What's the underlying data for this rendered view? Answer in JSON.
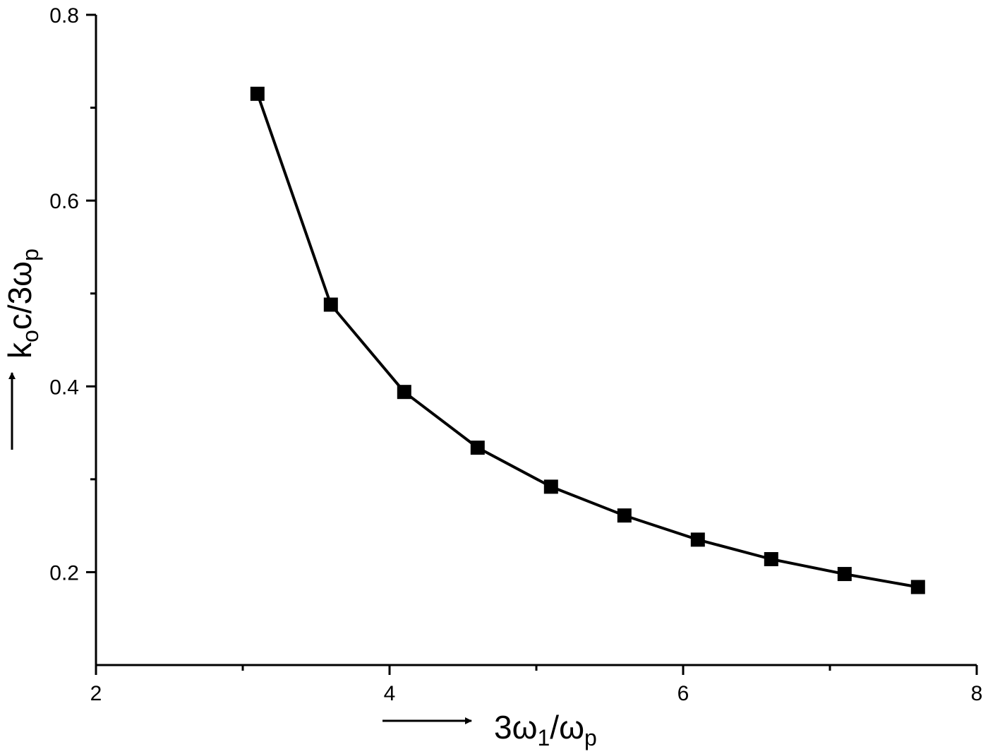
{
  "chart_data": {
    "type": "line",
    "title": "",
    "xlabel": {
      "main": "3ω",
      "sub1": "1",
      "mid": "/ω",
      "sub2": "p"
    },
    "ylabel": {
      "pre": "k",
      "sub1": "o",
      "mid": "c/3ω",
      "sub2": "p"
    },
    "xlim": [
      2,
      8
    ],
    "ylim": [
      0.1,
      0.8
    ],
    "xticks": [
      2,
      4,
      6,
      8
    ],
    "xtick_labels": [
      "2",
      "4",
      "6",
      "8"
    ],
    "xminor": [
      3,
      5,
      7
    ],
    "yticks": [
      0.2,
      0.4,
      0.6,
      0.8
    ],
    "ytick_labels": [
      "0.2",
      "0.4",
      "0.6",
      "0.8"
    ],
    "yminor": [
      0.3,
      0.5,
      0.7
    ],
    "grid": false,
    "legend": "none",
    "marker": "square",
    "line_color": "#000000",
    "series": [
      {
        "x": [
          3.1,
          3.6,
          4.1,
          4.6,
          5.1,
          5.6,
          6.1,
          6.6,
          7.1,
          7.6
        ],
        "values": [
          0.715,
          0.488,
          0.394,
          0.334,
          0.292,
          0.261,
          0.235,
          0.214,
          0.198,
          0.184
        ]
      }
    ]
  }
}
